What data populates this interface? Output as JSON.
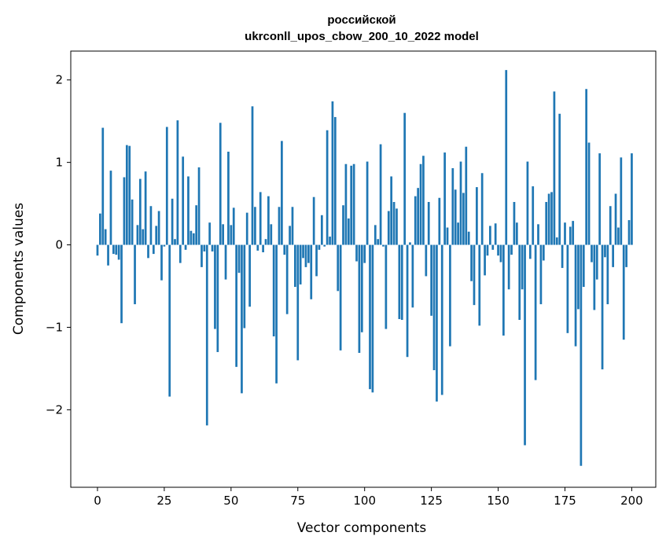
{
  "chart_data": {
    "type": "bar",
    "title_lines": [
      "российской",
      "ukrconll_upos_cbow_200_10_2022 model"
    ],
    "xlabel": "Vector components",
    "ylabel": "Components values",
    "xlim": [
      -10,
      209
    ],
    "ylim": [
      -2.94,
      2.35
    ],
    "xticks": [
      0,
      25,
      50,
      75,
      100,
      125,
      150,
      175,
      200
    ],
    "yticks": [
      -2,
      -1,
      0,
      1,
      2
    ],
    "ytick_labels": [
      "−2",
      "−1",
      "0",
      "1",
      "2"
    ],
    "bar_color": "#1f77b4",
    "grid": false,
    "x_start": 0,
    "values": [
      -0.13,
      0.38,
      1.42,
      0.19,
      -0.25,
      0.9,
      -0.11,
      -0.12,
      -0.18,
      -0.95,
      0.82,
      1.21,
      1.2,
      0.55,
      -0.72,
      0.24,
      0.8,
      0.19,
      0.89,
      -0.16,
      0.47,
      -0.11,
      0.23,
      0.41,
      -0.43,
      -0.02,
      1.43,
      -1.84,
      0.56,
      0.07,
      1.51,
      -0.22,
      1.07,
      -0.06,
      0.83,
      0.17,
      0.14,
      0.48,
      0.94,
      -0.27,
      -0.08,
      -2.19,
      0.27,
      -0.08,
      -1.02,
      -1.3,
      1.48,
      0.25,
      -0.42,
      1.13,
      0.24,
      0.45,
      -1.48,
      -0.34,
      -1.8,
      -1.01,
      0.39,
      -0.75,
      1.68,
      0.46,
      -0.07,
      0.64,
      -0.09,
      0.07,
      0.59,
      0.25,
      -1.11,
      -1.68,
      0.46,
      1.26,
      -0.12,
      -0.84,
      0.23,
      0.46,
      -0.51,
      -1.4,
      -0.48,
      -0.16,
      -0.27,
      -0.22,
      -0.66,
      0.58,
      -0.38,
      -0.06,
      0.36,
      -0.02,
      1.39,
      0.1,
      1.74,
      1.55,
      -0.56,
      -1.28,
      0.48,
      0.98,
      0.32,
      0.96,
      0.98,
      -0.2,
      -1.31,
      -1.06,
      -0.22,
      1.01,
      -1.75,
      -1.79,
      0.24,
      0.07,
      1.22,
      -0.02,
      -1.02,
      0.41,
      0.83,
      0.52,
      0.44,
      -0.9,
      -0.91,
      1.6,
      -1.36,
      0.03,
      -0.76,
      0.59,
      0.69,
      0.98,
      1.08,
      -0.38,
      0.52,
      -0.86,
      -1.52,
      -1.9,
      0.57,
      -1.82,
      1.12,
      0.21,
      -1.23,
      0.93,
      0.67,
      0.27,
      1.01,
      0.63,
      1.19,
      0.16,
      -0.44,
      -0.73,
      0.7,
      -0.98,
      0.87,
      -0.37,
      -0.13,
      0.23,
      -0.06,
      0.26,
      -0.13,
      -0.21,
      -1.1,
      2.12,
      -0.54,
      -0.12,
      0.52,
      0.27,
      -0.91,
      -0.54,
      -2.43,
      1.01,
      -0.17,
      0.71,
      -1.64,
      0.25,
      -0.72,
      -0.19,
      0.52,
      0.62,
      0.64,
      1.86,
      0.09,
      1.59,
      -0.28,
      0.27,
      -1.07,
      0.22,
      0.29,
      -1.23,
      -0.78,
      -2.68,
      -0.51,
      1.89,
      1.24,
      -0.21,
      -0.79,
      -0.42,
      1.11,
      -1.51,
      -0.15,
      -0.72,
      0.47,
      -0.27,
      0.62,
      0.21,
      1.06,
      -1.15,
      -0.27,
      0.3,
      1.11
    ]
  }
}
